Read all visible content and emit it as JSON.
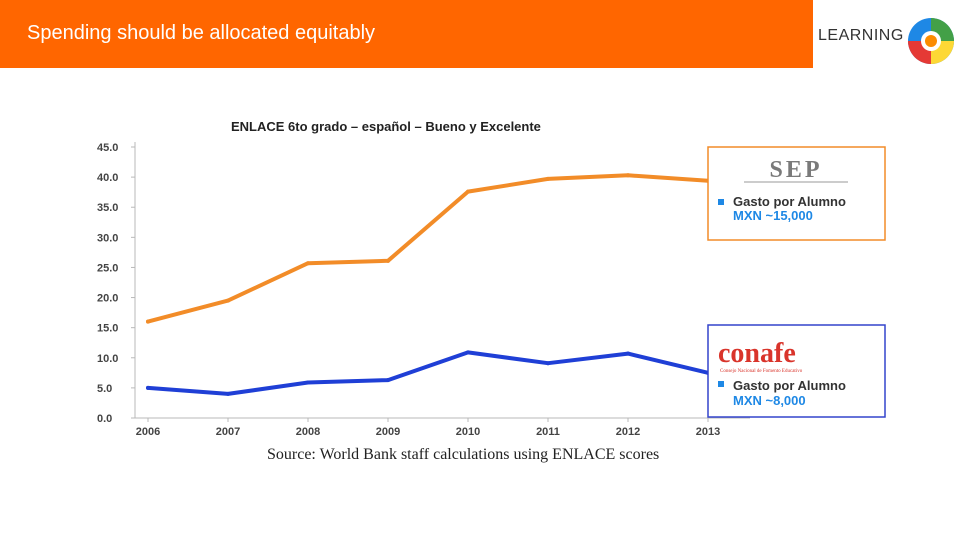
{
  "slide": {
    "title": "Spending should be allocated equitably",
    "header_color": "#ff6600"
  },
  "logo": {
    "text": "LEARNING",
    "tagline": "",
    "subtitle": "",
    "icon": "learning-logo-icon"
  },
  "chart_data": {
    "type": "line",
    "title": "ENLACE 6to grado – español – Bueno y Excelente",
    "xlabel": "",
    "ylabel": "",
    "categories": [
      "2006",
      "2007",
      "2008",
      "2009",
      "2010",
      "2011",
      "2012",
      "2013"
    ],
    "ylim": [
      0,
      45
    ],
    "yticks": [
      "0.0",
      "5.0",
      "10.0",
      "15.0",
      "20.0",
      "25.0",
      "30.0",
      "35.0",
      "40.0",
      "45.0"
    ],
    "grid": false,
    "series": [
      {
        "values": [
          16.0,
          19.5,
          25.7,
          26.1,
          37.6,
          39.7,
          40.3,
          39.4
        ],
        "color": "#f28c28"
      },
      {
        "values": [
          5.0,
          4.0,
          5.9,
          6.3,
          10.9,
          9.1,
          10.7,
          7.5
        ],
        "color": "#1f3fd6"
      }
    ],
    "callouts": [
      {
        "logo": "SEP",
        "bullet": "Gasto por Alumno",
        "amount": "MXN ~15,000",
        "border": "#f28c28"
      },
      {
        "logo": "conafe",
        "logo_sub": "Consejo Nacional de Fomento Educativo",
        "bullet": "Gasto por Alumno",
        "amount": "MXN ~8,000",
        "border": "#3344cc"
      }
    ]
  },
  "source": "Source: World Bank staff calculations using ENLACE scores"
}
